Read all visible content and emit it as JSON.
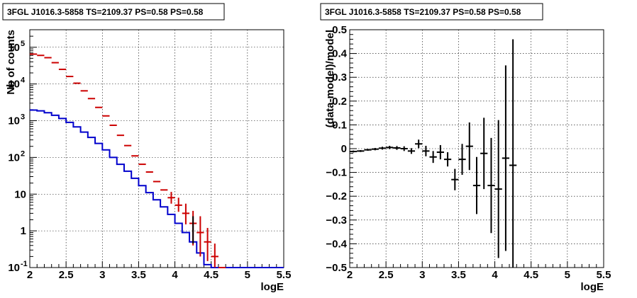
{
  "chart_data": [
    {
      "type": "line",
      "title": "3FGL J1016.3-5858 TS=2109.37 PS=0.58 PS=0.58",
      "xlabel": "logE",
      "ylabel": "Nb of counts",
      "xlim": [
        2,
        5.5
      ],
      "ylim": [
        0.1,
        300000
      ],
      "yscale": "log",
      "grid": true,
      "x_ticks": [
        "2",
        "2.5",
        "3",
        "3.5",
        "4",
        "4.5",
        "5",
        "5.5"
      ],
      "y_ticks": [
        {
          "v": 0.1,
          "label": "10",
          "sup": "-1"
        },
        {
          "v": 1,
          "label": "1",
          "sup": ""
        },
        {
          "v": 10,
          "label": "10",
          "sup": ""
        },
        {
          "v": 100,
          "label": "10",
          "sup": "2"
        },
        {
          "v": 1000,
          "label": "10",
          "sup": "3"
        },
        {
          "v": 10000,
          "label": "10",
          "sup": "4"
        },
        {
          "v": 100000,
          "label": "10",
          "sup": "5"
        }
      ],
      "bins_x": [
        2.05,
        2.15,
        2.25,
        2.35,
        2.45,
        2.55,
        2.65,
        2.75,
        2.85,
        2.95,
        3.05,
        3.15,
        3.25,
        3.35,
        3.45,
        3.55,
        3.65,
        3.75,
        3.85,
        3.95,
        4.05,
        4.15,
        4.25,
        4.35,
        4.45,
        4.55,
        4.65,
        4.75,
        4.85,
        4.95,
        5.05,
        5.15,
        5.25,
        5.35,
        5.45
      ],
      "series": [
        {
          "color": "#cc0000",
          "style": "points",
          "values": [
            65000,
            60000,
            52000,
            38000,
            25000,
            16000,
            10500,
            6500,
            4000,
            2300,
            1350,
            750,
            400,
            210,
            110,
            65,
            40,
            22,
            13,
            8,
            5,
            3,
            1.6,
            0.9,
            0.5,
            0.2,
            0.1,
            null,
            null,
            null,
            null,
            null,
            null,
            null,
            null
          ],
          "err_lo": [
            null,
            null,
            null,
            null,
            null,
            null,
            null,
            null,
            null,
            null,
            null,
            null,
            null,
            null,
            null,
            null,
            null,
            null,
            null,
            5.5,
            3.3,
            1.5,
            0.4,
            0.2,
            0.15,
            null,
            null,
            null,
            null,
            null,
            null,
            null,
            null,
            null,
            null
          ],
          "err_hi": [
            null,
            null,
            null,
            null,
            null,
            null,
            null,
            null,
            null,
            null,
            null,
            null,
            null,
            null,
            null,
            null,
            null,
            null,
            null,
            11.5,
            8,
            5.5,
            3.5,
            2.5,
            1.2,
            0.45,
            null,
            null,
            null,
            null,
            null,
            null,
            null,
            null,
            null
          ]
        },
        {
          "color": "#0000cc",
          "style": "step",
          "values": [
            1950,
            1850,
            1650,
            1400,
            1150,
            900,
            680,
            490,
            350,
            240,
            160,
            100,
            65,
            42,
            27,
            17,
            11,
            7,
            4.5,
            2.8,
            1.6,
            0.9,
            0.5,
            0.25,
            0.12,
            0.1,
            0.1,
            0.1,
            0.1,
            0.1,
            0.1,
            0.1,
            0.1,
            0.1,
            0.1
          ]
        }
      ]
    },
    {
      "type": "scatter",
      "title": "3FGL J1016.3-5858 TS=2109.37 PS=0.58 PS=0.58",
      "xlabel": "logE",
      "ylabel": "(data-model)/model",
      "xlim": [
        2,
        5.5
      ],
      "ylim": [
        -0.5,
        0.5
      ],
      "grid": true,
      "x_ticks": [
        "2",
        "2.5",
        "3",
        "3.5",
        "4",
        "4.5",
        "5",
        "5.5"
      ],
      "y_ticks": [
        "−0.5",
        "−0.4",
        "−0.3",
        "−0.2",
        "−0.1",
        "0",
        "0.1",
        "0.2",
        "0.3",
        "0.4",
        "0.5"
      ],
      "points": [
        {
          "x": 2.05,
          "y": -0.012,
          "e": 0.004
        },
        {
          "x": 2.15,
          "y": -0.01,
          "e": 0.004
        },
        {
          "x": 2.25,
          "y": -0.005,
          "e": 0.004
        },
        {
          "x": 2.35,
          "y": -0.002,
          "e": 0.005
        },
        {
          "x": 2.45,
          "y": 0.002,
          "e": 0.006
        },
        {
          "x": 2.55,
          "y": 0.005,
          "e": 0.007
        },
        {
          "x": 2.65,
          "y": 0.003,
          "e": 0.008
        },
        {
          "x": 2.75,
          "y": 0.0,
          "e": 0.01
        },
        {
          "x": 2.85,
          "y": -0.01,
          "e": 0.012
        },
        {
          "x": 2.95,
          "y": 0.02,
          "e": 0.018
        },
        {
          "x": 3.05,
          "y": -0.01,
          "e": 0.022
        },
        {
          "x": 3.15,
          "y": -0.035,
          "e": 0.025
        },
        {
          "x": 3.25,
          "y": -0.015,
          "e": 0.03
        },
        {
          "x": 3.35,
          "y": -0.045,
          "e": 0.03
        },
        {
          "x": 3.45,
          "y": -0.13,
          "e": 0.045
        },
        {
          "x": 3.55,
          "y": -0.045,
          "e": 0.065
        },
        {
          "x": 3.65,
          "y": 0.01,
          "e": 0.1
        },
        {
          "x": 3.75,
          "y": -0.155,
          "e": 0.12
        },
        {
          "x": 3.85,
          "y": -0.02,
          "e": 0.15
        },
        {
          "x": 3.95,
          "y": -0.155,
          "e": 0.2
        },
        {
          "x": 4.05,
          "y": -0.17,
          "e": 0.29
        },
        {
          "x": 4.15,
          "y": -0.04,
          "e": 0.39
        },
        {
          "x": 4.25,
          "y": -0.07,
          "e": 0.53
        }
      ]
    }
  ]
}
